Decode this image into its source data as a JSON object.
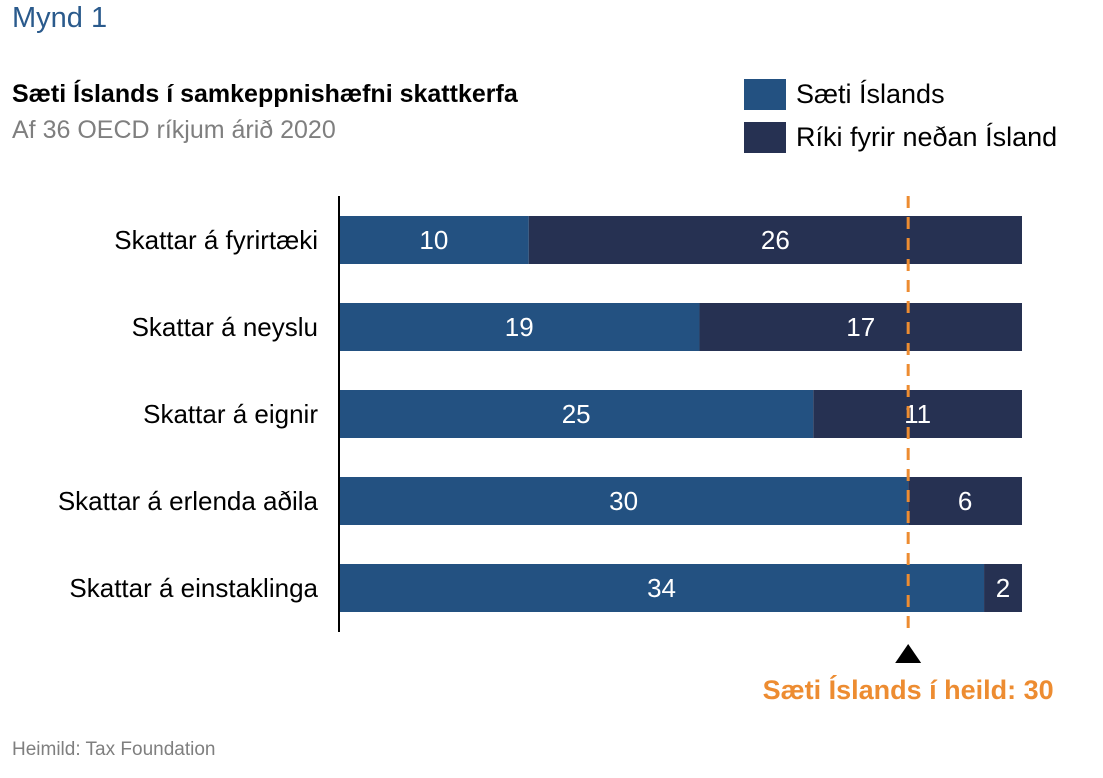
{
  "figure_label": "Mynd 1",
  "source": "Heimild: Tax Foundation",
  "colors": {
    "rank": "#235181",
    "below": "#263152",
    "marker_line": "#ed8c31",
    "overall_text": "#ed8c31",
    "axis": "#000000"
  },
  "chart_data": {
    "type": "bar",
    "orientation": "horizontal",
    "stacked": true,
    "title": "Sæti Íslands í samkeppnishæfni skattkerfa",
    "subtitle": "Af 36 OECD ríkjum árið 2020",
    "xlabel": "",
    "ylabel": "",
    "xlim": [
      0,
      36
    ],
    "grid": false,
    "legend_position": "top-right",
    "categories": [
      "Skattar á fyrirtæki",
      "Skattar á neyslu",
      "Skattar á eignir",
      "Skattar á erlenda aðila",
      "Skattar á einstaklinga"
    ],
    "series": [
      {
        "name": "Sæti Íslands",
        "values": [
          10,
          19,
          25,
          30,
          34
        ]
      },
      {
        "name": "Ríki fyrir neðan Ísland",
        "values": [
          26,
          17,
          11,
          6,
          2
        ]
      }
    ],
    "reference_line": {
      "value": 30,
      "style": "dashed",
      "label": "Sæti Íslands í heild: 30"
    }
  }
}
